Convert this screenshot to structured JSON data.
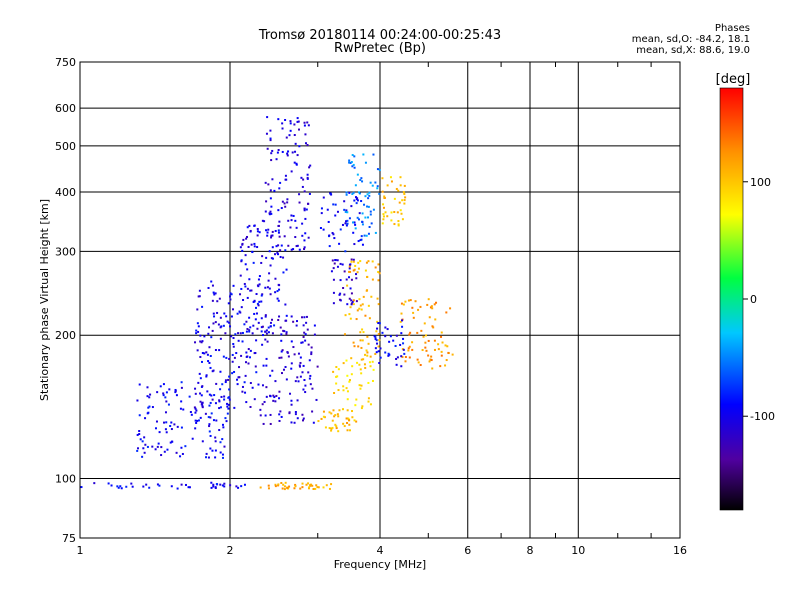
{
  "chart_data": {
    "type": "scatter",
    "title": "Tromsø 20180114 00:24:00-00:25:43",
    "subtitle": "RwPretec (Bp)",
    "xlabel": "Frequency [MHz]",
    "ylabel": "Stationary phase Virtual Height [km]",
    "x_scale": "log",
    "y_scale": "log",
    "xlim": [
      1,
      16
    ],
    "ylim": [
      75,
      750
    ],
    "x_ticks": [
      "1",
      "2",
      "4",
      "6",
      "8",
      "10",
      "16"
    ],
    "y_ticks": [
      "75",
      "100",
      "200",
      "300",
      "400",
      "500",
      "600",
      "750"
    ],
    "grid": true,
    "color_variable": "Phase [deg]",
    "colorbar": {
      "label": "[deg]",
      "ticks": [
        "100",
        "0",
        "-100"
      ],
      "range": [
        -180,
        180
      ]
    },
    "stats_header": "Phases",
    "stats_lines": [
      "mean, sd,O: -84.2, 18.1",
      "mean, sd,X:  88.6, 19.0"
    ],
    "regions": [
      {
        "f_min": 1.0,
        "f_max": 2.15,
        "h_min": 95,
        "h_max": 98,
        "phase": -95
      },
      {
        "f_min": 2.3,
        "f_max": 3.2,
        "h_min": 95,
        "h_max": 98,
        "phase": 110
      },
      {
        "f_min": 1.3,
        "f_max": 2.0,
        "h_min": 110,
        "h_max": 160,
        "phase": -95
      },
      {
        "f_min": 1.7,
        "f_max": 2.3,
        "h_min": 140,
        "h_max": 260,
        "phase": -100
      },
      {
        "f_min": 2.1,
        "f_max": 2.6,
        "h_min": 200,
        "h_max": 350,
        "phase": -100
      },
      {
        "f_min": 2.35,
        "f_max": 2.9,
        "h_min": 300,
        "h_max": 580,
        "phase": -105
      },
      {
        "f_min": 2.3,
        "f_max": 3.0,
        "h_min": 130,
        "h_max": 220,
        "phase": -110
      },
      {
        "f_min": 3.2,
        "f_max": 3.6,
        "h_min": 230,
        "h_max": 290,
        "phase": -115
      },
      {
        "f_min": 3.0,
        "f_max": 3.7,
        "h_min": 300,
        "h_max": 400,
        "phase": -90
      },
      {
        "f_min": 3.2,
        "f_max": 3.9,
        "h_min": 140,
        "h_max": 180,
        "phase": 90
      },
      {
        "f_min": 3.4,
        "f_max": 4.0,
        "h_min": 180,
        "h_max": 290,
        "phase": 110
      },
      {
        "f_min": 3.0,
        "f_max": 3.6,
        "h_min": 125,
        "h_max": 140,
        "phase": 105
      },
      {
        "f_min": 4.4,
        "f_max": 5.6,
        "h_min": 170,
        "h_max": 240,
        "phase": 120
      },
      {
        "f_min": 3.9,
        "f_max": 4.5,
        "h_min": 170,
        "h_max": 215,
        "phase": -95
      },
      {
        "f_min": 4.0,
        "f_max": 4.5,
        "h_min": 340,
        "h_max": 430,
        "phase": 100
      },
      {
        "f_min": 3.4,
        "f_max": 4.0,
        "h_min": 320,
        "h_max": 480,
        "phase": -50
      }
    ]
  }
}
